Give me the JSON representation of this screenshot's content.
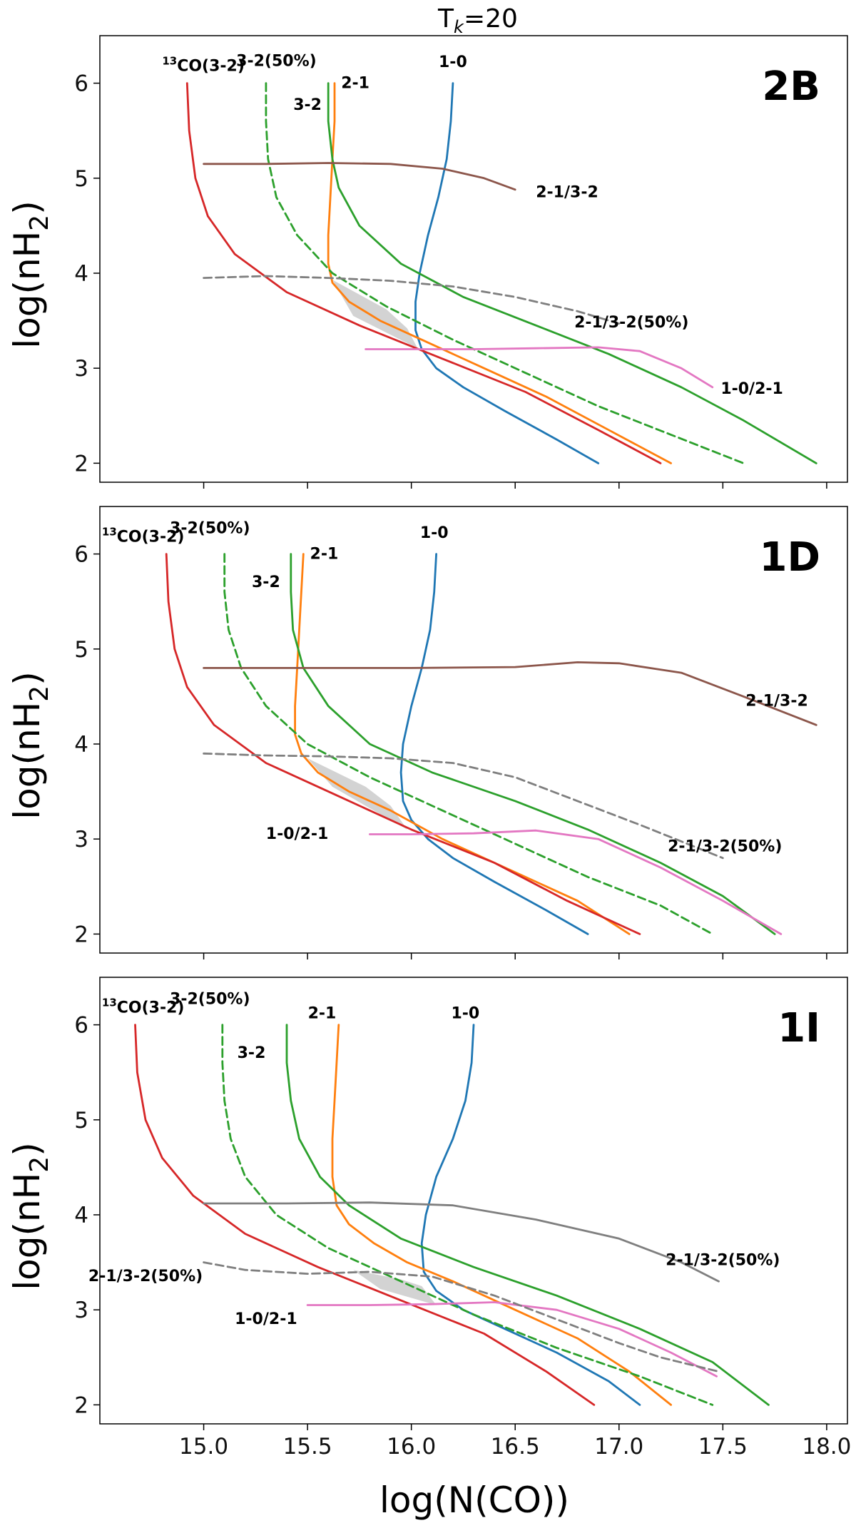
{
  "figure": {
    "title_main": "T",
    "title_sub": "k",
    "title_rest": "=20",
    "xlabel": "log(N(CO))",
    "ylabel_main": "log(nH",
    "ylabel_sub": "2",
    "ylabel_end": ")"
  },
  "colors": {
    "1-0": "#1f77b4",
    "2-1": "#ff7f0e",
    "3-2": "#2ca02c",
    "3-2(50%)": "#2ca02c",
    "13CO(3-2)": "#d62728",
    "2-1/3-2": "#8c564b",
    "1-0/2-1": "#e377c2",
    "2-1/3-2(50%)": "#7f7f7f",
    "shade": "#d3d3d3"
  },
  "chart_data": [
    {
      "type": "line",
      "panel": "2B",
      "xlim": [
        14.5,
        18.1
      ],
      "ylim": [
        1.8,
        6.5
      ],
      "xticks": [
        15.0,
        15.5,
        16.0,
        16.5,
        17.0,
        17.5,
        18.0
      ],
      "yticks": [
        2,
        3,
        4,
        5,
        6
      ],
      "series": [
        {
          "name": "1-0",
          "dashed": false,
          "x": [
            16.2,
            16.19,
            16.17,
            16.13,
            16.08,
            16.04,
            16.02,
            16.02,
            16.05,
            16.12,
            16.25,
            16.45,
            16.7,
            16.9
          ],
          "y": [
            6.0,
            5.6,
            5.2,
            4.8,
            4.4,
            4.0,
            3.7,
            3.4,
            3.2,
            3.0,
            2.8,
            2.55,
            2.25,
            2.0
          ]
        },
        {
          "name": "2-1",
          "dashed": false,
          "x": [
            15.63,
            15.63,
            15.62,
            15.61,
            15.6,
            15.6,
            15.62,
            15.7,
            15.85,
            16.05,
            16.35,
            16.65,
            16.95,
            17.25
          ],
          "y": [
            6.0,
            5.6,
            5.2,
            4.8,
            4.4,
            4.1,
            3.9,
            3.7,
            3.5,
            3.3,
            3.0,
            2.7,
            2.35,
            2.0
          ]
        },
        {
          "name": "3-2",
          "dashed": false,
          "x": [
            15.6,
            15.6,
            15.62,
            15.65,
            15.75,
            15.95,
            16.25,
            16.6,
            16.95,
            17.3,
            17.6,
            17.95
          ],
          "y": [
            6.0,
            5.6,
            5.2,
            4.9,
            4.5,
            4.1,
            3.75,
            3.45,
            3.15,
            2.8,
            2.45,
            2.0
          ]
        },
        {
          "name": "3-2(50%)",
          "dashed": true,
          "x": [
            15.3,
            15.3,
            15.31,
            15.35,
            15.45,
            15.62,
            15.88,
            16.2,
            16.55,
            16.9,
            17.25,
            17.6
          ],
          "y": [
            6.0,
            5.6,
            5.2,
            4.8,
            4.4,
            4.0,
            3.65,
            3.3,
            2.95,
            2.6,
            2.3,
            2.0
          ]
        },
        {
          "name": "13CO(3-2)",
          "dashed": false,
          "x": [
            14.92,
            14.93,
            14.96,
            15.02,
            15.15,
            15.4,
            15.75,
            16.15,
            16.55,
            16.9,
            17.2
          ],
          "y": [
            6.0,
            5.5,
            5.0,
            4.6,
            4.2,
            3.8,
            3.45,
            3.1,
            2.75,
            2.35,
            2.0
          ]
        },
        {
          "name": "2-1/3-2",
          "dashed": false,
          "x": [
            15.0,
            15.3,
            15.6,
            15.9,
            16.15,
            16.35,
            16.5
          ],
          "y": [
            5.15,
            5.15,
            5.16,
            5.15,
            5.1,
            5.0,
            4.88
          ]
        },
        {
          "name": "1-0/2-1",
          "dashed": false,
          "x": [
            15.78,
            16.0,
            16.3,
            16.6,
            16.9,
            17.1,
            17.3,
            17.45
          ],
          "y": [
            3.2,
            3.2,
            3.2,
            3.21,
            3.22,
            3.18,
            3.0,
            2.8
          ]
        },
        {
          "name": "2-1/3-2(50%)",
          "dashed": true,
          "x": [
            15.0,
            15.3,
            15.6,
            15.9,
            16.2,
            16.5,
            16.8,
            17.0
          ],
          "y": [
            3.95,
            3.97,
            3.95,
            3.92,
            3.86,
            3.75,
            3.6,
            3.47
          ]
        }
      ],
      "shaded_region": {
        "x": [
          15.62,
          15.88,
          15.98,
          16.03,
          15.72
        ],
        "y": [
          3.93,
          3.62,
          3.42,
          3.21,
          3.55
        ]
      },
      "labels": [
        {
          "text": "3-2(50%)",
          "x": 15.35,
          "y": 6.18
        },
        {
          "text": "1-0",
          "x": 16.2,
          "y": 6.17
        },
        {
          "text": "2-1",
          "x": 15.73,
          "y": 5.95
        },
        {
          "text": "3-2",
          "x": 15.5,
          "y": 5.72
        },
        {
          "text": "2-1/3-2",
          "x": 16.75,
          "y": 4.8
        },
        {
          "text": "2-1/3-2(50%)",
          "x": 17.06,
          "y": 3.43
        },
        {
          "text": "1-0/2-1",
          "x": 17.64,
          "y": 2.73
        }
      ],
      "iso_label": {
        "sup": "13",
        "text": "CO(3-2)",
        "x": 14.8,
        "y": 6.13
      },
      "panel_label": "2B"
    },
    {
      "type": "line",
      "panel": "1D",
      "xlim": [
        14.5,
        18.1
      ],
      "ylim": [
        1.8,
        6.5
      ],
      "xticks": [
        15.0,
        15.5,
        16.0,
        16.5,
        17.0,
        17.5,
        18.0
      ],
      "yticks": [
        2,
        3,
        4,
        5,
        6
      ],
      "series": [
        {
          "name": "1-0",
          "dashed": false,
          "x": [
            16.12,
            16.11,
            16.09,
            16.05,
            16.0,
            15.96,
            15.95,
            15.96,
            16.0,
            16.08,
            16.2,
            16.4,
            16.65,
            16.85
          ],
          "y": [
            6.0,
            5.6,
            5.2,
            4.8,
            4.4,
            4.0,
            3.7,
            3.4,
            3.2,
            3.0,
            2.8,
            2.55,
            2.25,
            2.0
          ]
        },
        {
          "name": "2-1",
          "dashed": false,
          "x": [
            15.48,
            15.47,
            15.46,
            15.45,
            15.44,
            15.44,
            15.47,
            15.55,
            15.7,
            15.9,
            16.15,
            16.45,
            16.8,
            17.05
          ],
          "y": [
            6.0,
            5.6,
            5.2,
            4.8,
            4.4,
            4.1,
            3.9,
            3.7,
            3.5,
            3.3,
            3.0,
            2.7,
            2.35,
            2.0
          ]
        },
        {
          "name": "3-2",
          "dashed": false,
          "x": [
            15.42,
            15.42,
            15.43,
            15.48,
            15.6,
            15.8,
            16.1,
            16.5,
            16.85,
            17.2,
            17.5,
            17.75
          ],
          "y": [
            6.0,
            5.6,
            5.2,
            4.8,
            4.4,
            4.0,
            3.7,
            3.4,
            3.1,
            2.75,
            2.4,
            2.0
          ]
        },
        {
          "name": "3-2(50%)",
          "dashed": true,
          "x": [
            15.1,
            15.1,
            15.12,
            15.18,
            15.3,
            15.5,
            15.8,
            16.15,
            16.5,
            16.85,
            17.2,
            17.45
          ],
          "y": [
            6.0,
            5.6,
            5.2,
            4.8,
            4.4,
            4.0,
            3.65,
            3.3,
            2.95,
            2.6,
            2.3,
            2.0
          ]
        },
        {
          "name": "13CO(3-2)",
          "dashed": false,
          "x": [
            14.82,
            14.83,
            14.86,
            14.92,
            15.05,
            15.3,
            15.65,
            16.0,
            16.4,
            16.75,
            17.1
          ],
          "y": [
            6.0,
            5.5,
            5.0,
            4.6,
            4.2,
            3.8,
            3.45,
            3.1,
            2.75,
            2.35,
            2.0
          ]
        },
        {
          "name": "2-1/3-2",
          "dashed": false,
          "x": [
            15.0,
            15.5,
            16.0,
            16.5,
            16.8,
            17.0,
            17.3,
            17.6,
            17.95
          ],
          "y": [
            4.8,
            4.8,
            4.8,
            4.81,
            4.86,
            4.85,
            4.75,
            4.5,
            4.2
          ]
        },
        {
          "name": "1-0/2-1",
          "dashed": false,
          "x": [
            15.8,
            16.0,
            16.3,
            16.6,
            16.9,
            17.2,
            17.5,
            17.78
          ],
          "y": [
            3.05,
            3.05,
            3.06,
            3.09,
            3.0,
            2.7,
            2.35,
            2.0
          ]
        },
        {
          "name": "2-1/3-2(50%)",
          "dashed": true,
          "x": [
            15.0,
            15.3,
            15.6,
            15.9,
            16.2,
            16.5,
            16.8,
            17.1,
            17.5
          ],
          "y": [
            3.9,
            3.88,
            3.87,
            3.85,
            3.8,
            3.65,
            3.4,
            3.15,
            2.8
          ]
        }
      ],
      "shaded_region": {
        "x": [
          15.5,
          15.78,
          15.9,
          15.98,
          15.62
        ],
        "y": [
          3.85,
          3.55,
          3.35,
          3.1,
          3.55
        ]
      },
      "labels": [
        {
          "text": "3-2(50%)",
          "x": 15.03,
          "y": 6.22
        },
        {
          "text": "1-0",
          "x": 16.11,
          "y": 6.17
        },
        {
          "text": "2-1",
          "x": 15.58,
          "y": 5.95
        },
        {
          "text": "3-2",
          "x": 15.3,
          "y": 5.65
        },
        {
          "text": "2-1/3-2",
          "x": 17.76,
          "y": 4.4
        },
        {
          "text": "2-1/3-2(50%)",
          "x": 17.51,
          "y": 2.87
        },
        {
          "text": "1-0/2-1",
          "x": 15.45,
          "y": 3.0
        }
      ],
      "iso_label": {
        "sup": "13",
        "text": "CO(3-2)",
        "x": 14.51,
        "y": 6.13
      },
      "panel_label": "1D"
    },
    {
      "type": "line",
      "panel": "1I",
      "xlim": [
        14.5,
        18.1
      ],
      "ylim": [
        1.8,
        6.5
      ],
      "xticks": [
        15.0,
        15.5,
        16.0,
        16.5,
        17.0,
        17.5,
        18.0
      ],
      "yticks": [
        2,
        3,
        4,
        5,
        6
      ],
      "series": [
        {
          "name": "1-0",
          "dashed": false,
          "x": [
            16.3,
            16.29,
            16.26,
            16.2,
            16.12,
            16.07,
            16.05,
            16.06,
            16.12,
            16.25,
            16.45,
            16.7,
            16.95,
            17.1
          ],
          "y": [
            6.0,
            5.6,
            5.2,
            4.8,
            4.4,
            4.0,
            3.7,
            3.4,
            3.2,
            3.0,
            2.8,
            2.55,
            2.25,
            2.0
          ]
        },
        {
          "name": "2-1",
          "dashed": false,
          "x": [
            15.65,
            15.64,
            15.63,
            15.62,
            15.62,
            15.64,
            15.7,
            15.82,
            15.98,
            16.2,
            16.5,
            16.8,
            17.05,
            17.25
          ],
          "y": [
            6.0,
            5.6,
            5.2,
            4.8,
            4.4,
            4.1,
            3.9,
            3.7,
            3.5,
            3.3,
            3.0,
            2.7,
            2.35,
            2.0
          ]
        },
        {
          "name": "3-2",
          "dashed": false,
          "x": [
            15.4,
            15.4,
            15.42,
            15.46,
            15.56,
            15.7,
            15.95,
            16.3,
            16.7,
            17.1,
            17.45,
            17.72
          ],
          "y": [
            6.0,
            5.6,
            5.2,
            4.8,
            4.4,
            4.1,
            3.75,
            3.45,
            3.15,
            2.8,
            2.45,
            2.0
          ]
        },
        {
          "name": "3-2(50%)",
          "dashed": true,
          "x": [
            15.09,
            15.09,
            15.1,
            15.13,
            15.2,
            15.35,
            15.6,
            15.95,
            16.3,
            16.7,
            17.1,
            17.45
          ],
          "y": [
            6.0,
            5.6,
            5.2,
            4.8,
            4.4,
            4.0,
            3.65,
            3.3,
            2.95,
            2.6,
            2.3,
            2.0
          ]
        },
        {
          "name": "13CO(3-2)",
          "dashed": false,
          "x": [
            14.67,
            14.68,
            14.72,
            14.8,
            14.95,
            15.2,
            15.55,
            15.95,
            16.35,
            16.65,
            16.88
          ],
          "y": [
            6.0,
            5.5,
            5.0,
            4.6,
            4.2,
            3.8,
            3.45,
            3.1,
            2.75,
            2.35,
            2.0
          ]
        },
        {
          "name": "2-1/3-2(50%)",
          "dashed": false,
          "x": [
            15.0,
            15.4,
            15.8,
            16.2,
            16.6,
            17.0,
            17.3,
            17.48
          ],
          "y": [
            4.12,
            4.12,
            4.13,
            4.1,
            3.95,
            3.75,
            3.5,
            3.3
          ]
        },
        {
          "name": "1-0/2-1",
          "dashed": false,
          "x": [
            15.5,
            15.8,
            16.1,
            16.4,
            16.7,
            17.0,
            17.25,
            17.47
          ],
          "y": [
            3.05,
            3.05,
            3.06,
            3.08,
            3.0,
            2.8,
            2.55,
            2.3
          ]
        },
        {
          "name": "2-1/3-2(50%)",
          "dashed": true,
          "x": [
            15.0,
            15.2,
            15.5,
            15.8,
            16.1,
            16.4,
            16.7,
            17.0,
            17.2,
            17.48
          ],
          "y": [
            3.5,
            3.42,
            3.38,
            3.4,
            3.35,
            3.15,
            2.9,
            2.65,
            2.5,
            2.35
          ]
        }
      ],
      "shaded_region": {
        "x": [
          15.72,
          15.95,
          16.05,
          16.12,
          15.85
        ],
        "y": [
          3.42,
          3.32,
          3.25,
          3.05,
          3.22
        ]
      },
      "labels": [
        {
          "text": "3-2(50%)",
          "x": 15.03,
          "y": 6.22
        },
        {
          "text": "1-0",
          "x": 16.26,
          "y": 6.07
        },
        {
          "text": "2-1",
          "x": 15.57,
          "y": 6.07
        },
        {
          "text": "3-2",
          "x": 15.23,
          "y": 5.65
        },
        {
          "text": "2-1/3-2(50%)",
          "x": 17.5,
          "y": 3.47
        },
        {
          "text": "2-1/3-2(50%)",
          "x": 14.72,
          "y": 3.3
        },
        {
          "text": "1-0/2-1",
          "x": 15.3,
          "y": 2.85
        }
      ],
      "iso_label": {
        "sup": "13",
        "text": "CO(3-2)",
        "x": 14.51,
        "y": 6.13
      },
      "panel_label": "1I"
    }
  ]
}
